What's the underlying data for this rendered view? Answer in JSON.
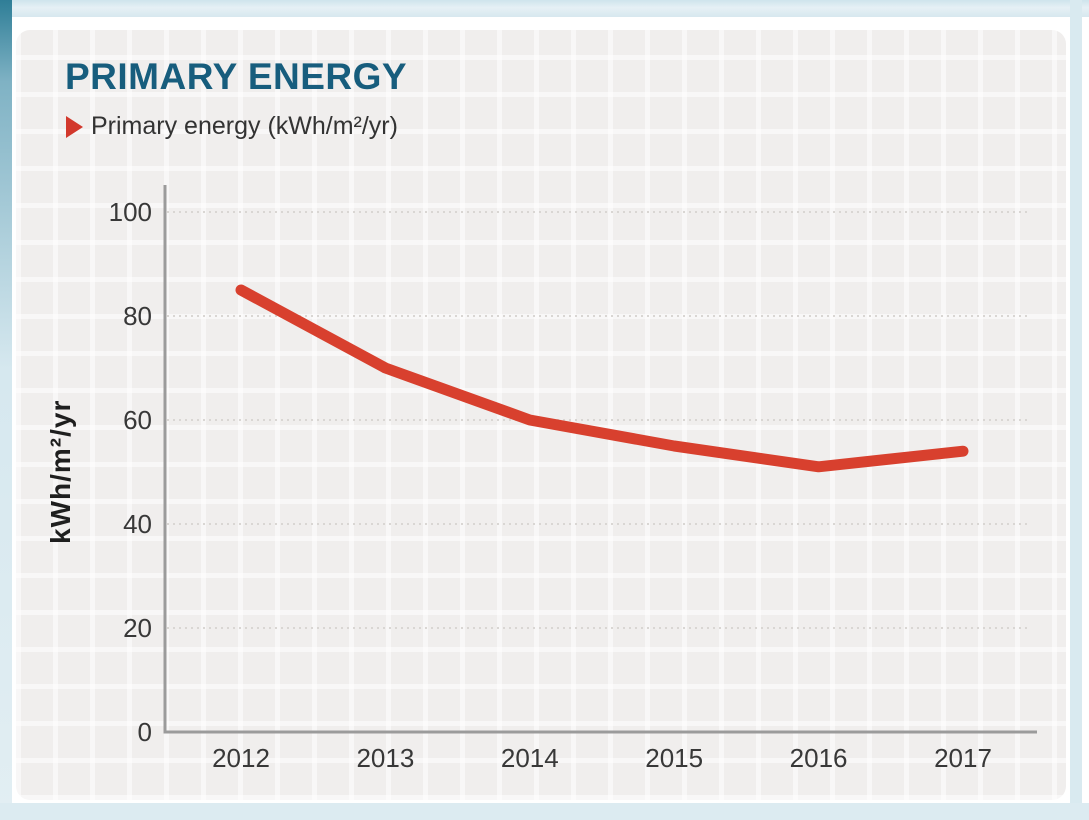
{
  "header": {
    "title": "PRIMARY ENERGY"
  },
  "legend": {
    "marker_icon": "right-triangle-icon",
    "marker_color": "#d2382c",
    "label": "Primary energy (kWh/m²/yr)"
  },
  "chart_data": {
    "type": "line",
    "title": "PRIMARY ENERGY",
    "categories": [
      "2012",
      "2013",
      "2014",
      "2015",
      "2016",
      "2017"
    ],
    "series": [
      {
        "name": "Primary energy (kWh/m²/yr)",
        "color": "#d8402e",
        "values": [
          85,
          70,
          60,
          55,
          51,
          54
        ]
      }
    ],
    "xlabel": "",
    "ylabel": "kWh/m²/yr",
    "ylim": [
      0,
      100
    ],
    "yticks": [
      0,
      20,
      40,
      60,
      80,
      100
    ],
    "grid": "horizontal-dotted",
    "legend_position": "top-left"
  },
  "colors": {
    "title": "#175d7d",
    "line": "#d8402e",
    "axis": "#9b9b9b",
    "gridline": "#d9d6d3",
    "panel_background": "#f0eeed",
    "frame_blue": "#d9eaf0",
    "frame_teal": "#2f7e97",
    "text": "#383838"
  }
}
